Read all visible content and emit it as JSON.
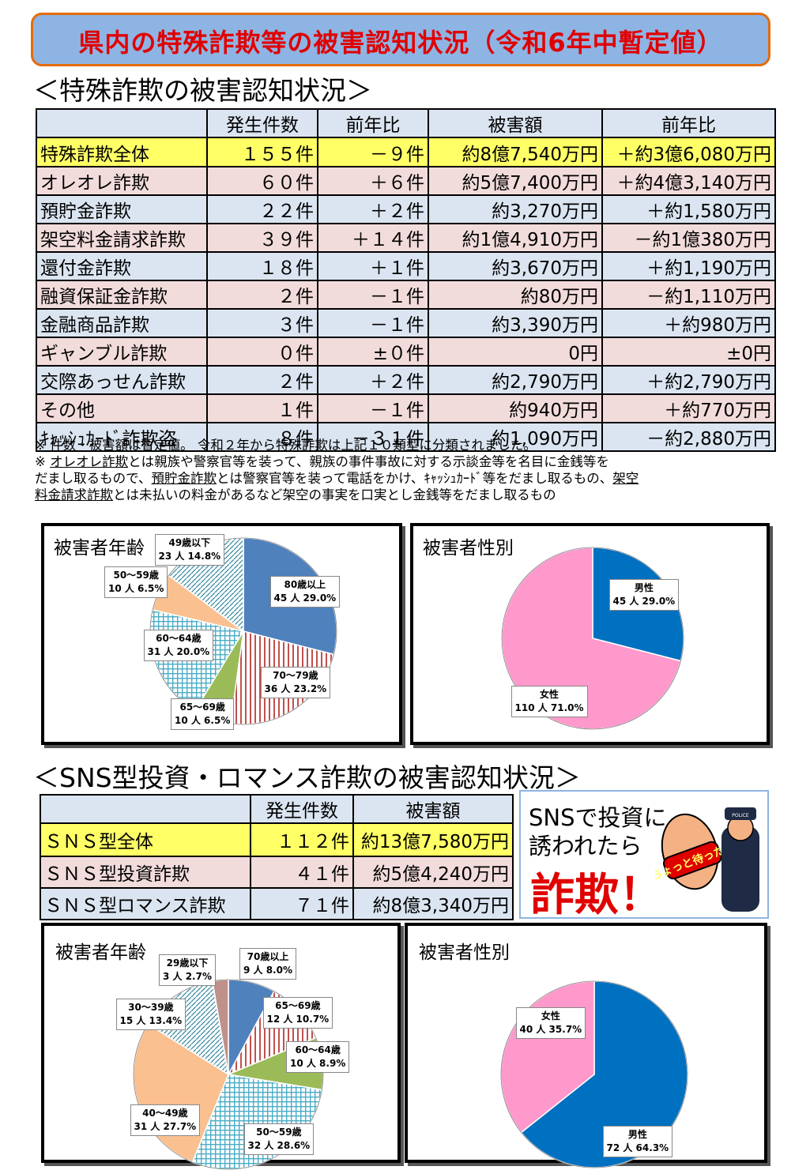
{
  "page_title": "県内の特殊詐欺等の被害認知状況（令和6年中暫定値）",
  "section1": {
    "heading": "＜特殊詐欺の被害認知状況＞",
    "headers": [
      "発生件数",
      "前年比",
      "被害額",
      "前年比"
    ],
    "total": {
      "name": "特殊詐欺全体",
      "count": "１５５件",
      "count_diff": "－９件",
      "damage": "約8億7,540万円",
      "damage_diff": "＋約3億6,080万円"
    },
    "rows": [
      {
        "name": "オレオレ詐欺",
        "count": "６０件",
        "count_diff": "＋６件",
        "damage": "約5億7,400万円",
        "damage_diff": "＋約4億3,140万円"
      },
      {
        "name": "預貯金詐欺",
        "count": "２２件",
        "count_diff": "＋２件",
        "damage": "約3,270万円",
        "damage_diff": "＋約1,580万円"
      },
      {
        "name": "架空料金請求詐欺",
        "count": "３９件",
        "count_diff": "＋１４件",
        "damage": "約1億4,910万円",
        "damage_diff": "－約1億380万円"
      },
      {
        "name": "還付金詐欺",
        "count": "１８件",
        "count_diff": "＋１件",
        "damage": "約3,670万円",
        "damage_diff": "＋約1,190万円"
      },
      {
        "name": "融資保証金詐欺",
        "count": "２件",
        "count_diff": "－１件",
        "damage": "約80万円",
        "damage_diff": "－約1,110万円"
      },
      {
        "name": "金融商品詐欺",
        "count": "３件",
        "count_diff": "－１件",
        "damage": "約3,390万円",
        "damage_diff": "＋約980万円"
      },
      {
        "name": "ギャンブル詐欺",
        "count": "０件",
        "count_diff": "±０件",
        "damage": "0円",
        "damage_diff": "±0円"
      },
      {
        "name": "交際あっせん詐欺",
        "count": "２件",
        "count_diff": "＋２件",
        "damage": "約2,790万円",
        "damage_diff": "＋約2,790万円"
      },
      {
        "name": "その他",
        "count": "１件",
        "count_diff": "－１件",
        "damage": "約940万円",
        "damage_diff": "＋約770万円"
      },
      {
        "name": "ｷｬｯｼｭｶｰﾄﾞ詐欺盗",
        "count": "８件",
        "count_diff": "－３１件",
        "damage": "約1,090万円",
        "damage_diff": "－約2,880万円"
      }
    ],
    "notes": {
      "line1": "※ 件数・被害額は暫定値。 令和２年から特殊詐欺は上記１０類型に分類されました。",
      "line2_prefix": "※ ",
      "term1": "オレオレ詐欺",
      "mid1": "とは親族や警察官等を装って、親族の事件事故に対する示談金等を名目に金銭等を",
      "mid2": "だまし取るもので、",
      "term2": "預貯金詐欺",
      "mid3": "とは警察官等を装って電話をかけ、ｷｬｯｼｭｶｰﾄﾞ等をだまし取るもの、",
      "term3a": "架空",
      "term3b": "料金請求詐欺",
      "mid4": "とは未払いの料金があるなど架空の事実を口実とし金銭等をだまし取るもの"
    }
  },
  "section2": {
    "heading": "＜SNS型投資・ロマンス詐欺の被害認知状況＞",
    "headers": [
      "発生件数",
      "被害額"
    ],
    "total": {
      "name": "ＳＮＳ型全体",
      "count": "１１２件",
      "damage": "約13億7,580万円"
    },
    "rows": [
      {
        "name": "ＳＮＳ型投資詐欺",
        "count": "４１件",
        "damage": "約5億4,240万円"
      },
      {
        "name": "ＳＮＳ型ロマンス詐欺",
        "count": "７１件",
        "damage": "約8億3,340万円"
      }
    ],
    "promo": {
      "line1": "SNSで投資に",
      "line2": "誘われたら",
      "line3": "詐欺！",
      "sign": "ちょっと待った！",
      "badge": "POLICE"
    }
  },
  "chart_data": [
    {
      "type": "pie",
      "title": "被害者年齢",
      "slices": [
        {
          "label": "80歳以上",
          "count": "45 人",
          "pct": "29.0%",
          "value": 29.0,
          "color": "#4f81bd",
          "pattern": "solid"
        },
        {
          "label": "70～79歳",
          "count": "36 人",
          "pct": "23.2%",
          "value": 23.2,
          "color": "#c0504d",
          "pattern": "vlines"
        },
        {
          "label": "65～69歳",
          "count": "10 人",
          "pct": "6.5%",
          "value": 6.5,
          "color": "#9bbb59",
          "pattern": "solid"
        },
        {
          "label": "60～64歳",
          "count": "31 人",
          "pct": "20.0%",
          "value": 20.0,
          "color": "#4bacc6",
          "pattern": "grid"
        },
        {
          "label": "50～59歳",
          "count": "10 人",
          "pct": "6.5%",
          "value": 6.5,
          "color": "#fac090",
          "pattern": "solid"
        },
        {
          "label": "49歳以下",
          "count": "23 人",
          "pct": "14.8%",
          "value": 14.8,
          "color": "#31859c",
          "pattern": "diag"
        }
      ]
    },
    {
      "type": "pie",
      "title": "被害者性別",
      "slices": [
        {
          "label": "男性",
          "count": "45 人",
          "pct": "29.0%",
          "value": 29.0,
          "color": "#0070c0",
          "pattern": "solid"
        },
        {
          "label": "女性",
          "count": "110 人",
          "pct": "71.0%",
          "value": 71.0,
          "color": "#ff99cc",
          "pattern": "solid"
        }
      ]
    },
    {
      "type": "pie",
      "title": "被害者年齢",
      "slices": [
        {
          "label": "70歳以上",
          "count": "9 人",
          "pct": "8.0%",
          "value": 8.0,
          "color": "#4f81bd",
          "pattern": "solid"
        },
        {
          "label": "65～69歳",
          "count": "12 人",
          "pct": "10.7%",
          "value": 10.7,
          "color": "#c0504d",
          "pattern": "vlines"
        },
        {
          "label": "60～64歳",
          "count": "10 人",
          "pct": "8.9%",
          "value": 8.9,
          "color": "#9bbb59",
          "pattern": "solid"
        },
        {
          "label": "50～59歳",
          "count": "32 人",
          "pct": "28.6%",
          "value": 28.6,
          "color": "#4bacc6",
          "pattern": "grid"
        },
        {
          "label": "40～49歳",
          "count": "31 人",
          "pct": "27.7%",
          "value": 27.7,
          "color": "#fac090",
          "pattern": "solid"
        },
        {
          "label": "30～39歳",
          "count": "15 人",
          "pct": "13.4%",
          "value": 13.4,
          "color": "#31859c",
          "pattern": "diag"
        },
        {
          "label": "29歳以下",
          "count": "3 人",
          "pct": "2.7%",
          "value": 2.7,
          "color": "#c0908a",
          "pattern": "solid"
        }
      ]
    },
    {
      "type": "pie",
      "title": "被害者性別",
      "slices": [
        {
          "label": "男性",
          "count": "72 人",
          "pct": "64.3%",
          "value": 64.3,
          "color": "#0070c0",
          "pattern": "solid"
        },
        {
          "label": "女性",
          "count": "40 人",
          "pct": "35.7%",
          "value": 35.7,
          "color": "#ff99cc",
          "pattern": "solid"
        }
      ]
    }
  ]
}
